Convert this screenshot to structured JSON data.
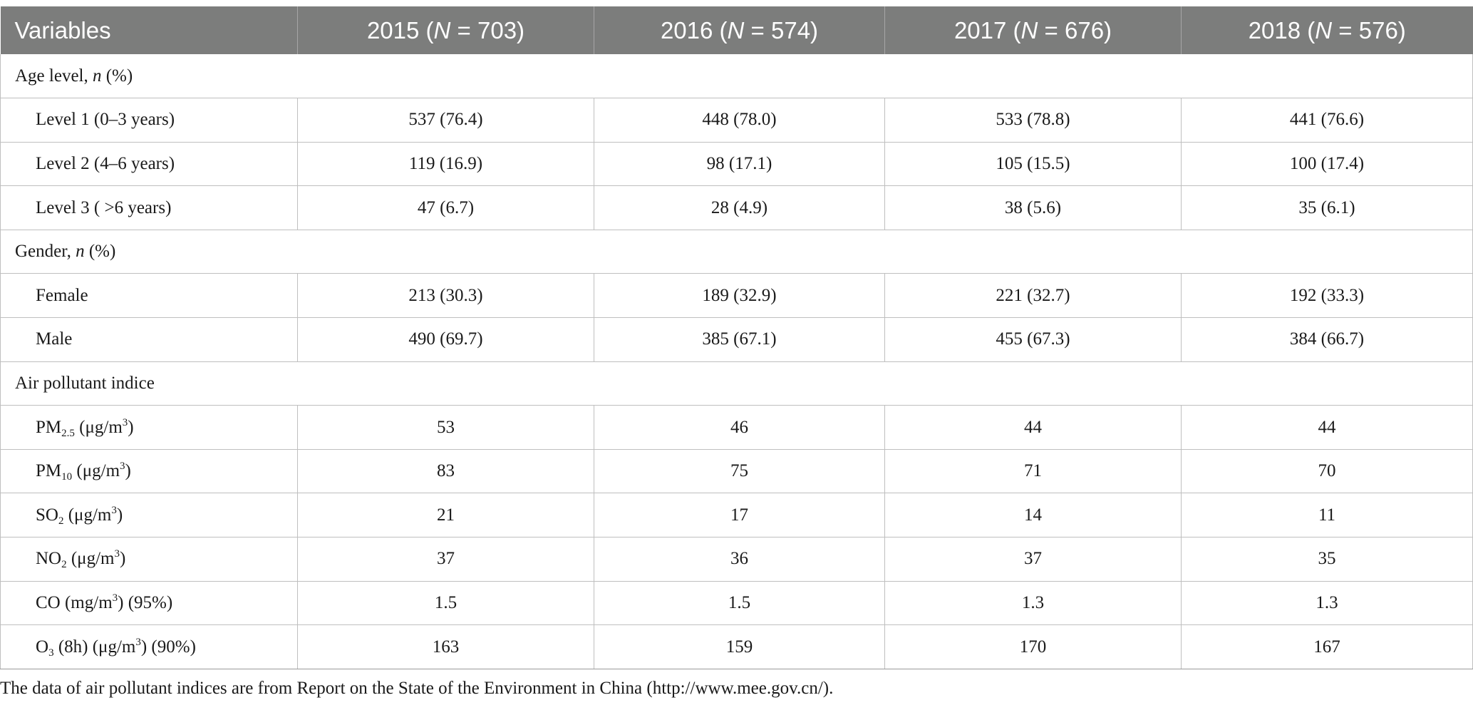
{
  "header": {
    "col0": "Variables",
    "col1": {
      "year": "2015",
      "n_label": "N",
      "n_value": "= 703)"
    },
    "col2": {
      "year": "2016",
      "n_label": "N",
      "n_value": "= 574)"
    },
    "col3": {
      "year": "2017",
      "n_label": "N",
      "n_value": "= 676)"
    },
    "col4": {
      "year": "2018",
      "n_label": "N",
      "n_value": "= 576)"
    }
  },
  "sections": {
    "age": {
      "label": "Age level, ",
      "n": "n",
      "pct": "(%)"
    },
    "gender": {
      "label": "Gender, ",
      "n": "n",
      "pct": "(%)"
    },
    "air": {
      "label": "Air pollutant indice"
    }
  },
  "rows": {
    "level1": {
      "label": "Level 1 (0–3 years)",
      "v": [
        "537 (76.4)",
        "448 (78.0)",
        "533 (78.8)",
        "441 (76.6)"
      ]
    },
    "level2": {
      "label": "Level 2 (4–6 years)",
      "v": [
        "119 (16.9)",
        "98 (17.1)",
        "105 (15.5)",
        "100 (17.4)"
      ]
    },
    "level3": {
      "label": "Level 3 ( >6 years)",
      "v": [
        "47 (6.7)",
        "28 (4.9)",
        "38 (5.6)",
        "35 (6.1)"
      ]
    },
    "female": {
      "label": "Female",
      "v": [
        "213 (30.3)",
        "189 (32.9)",
        "221 (32.7)",
        "192 (33.3)"
      ]
    },
    "male": {
      "label": "Male",
      "v": [
        "490 (69.7)",
        "385 (67.1)",
        "455 (67.3)",
        "384 (66.7)"
      ]
    },
    "pm25": {
      "pre": "PM",
      "sub": "2.5",
      "post": " (μg/m",
      "sup": "3",
      "end": ")",
      "v": [
        "53",
        "46",
        "44",
        "44"
      ]
    },
    "pm10": {
      "pre": "PM",
      "sub": "10",
      "post": " (μg/m",
      "sup": "3",
      "end": ")",
      "v": [
        "83",
        "75",
        "71",
        "70"
      ]
    },
    "so2": {
      "pre": "SO",
      "sub": "2",
      "post": " (μg/m",
      "sup": "3",
      "end": ")",
      "v": [
        "21",
        "17",
        "14",
        "11"
      ]
    },
    "no2": {
      "pre": "NO",
      "sub": "2",
      "post": " (μg/m",
      "sup": "3",
      "end": ")",
      "v": [
        "37",
        "36",
        "37",
        "35"
      ]
    },
    "co": {
      "pre": "CO (mg/m",
      "sup": "3",
      "end": ") (95%)",
      "v": [
        "1.5",
        "1.5",
        "1.3",
        "1.3"
      ]
    },
    "o3": {
      "pre": "O",
      "sub": "3",
      "mid": " (8h) (μg/m",
      "sup": "3",
      "end": ") (90%)",
      "v": [
        "163",
        "159",
        "170",
        "167"
      ]
    }
  },
  "footnote": "The data of air pollutant indices are from Report on the State of the Environment in China (http://www.mee.gov.cn/)."
}
